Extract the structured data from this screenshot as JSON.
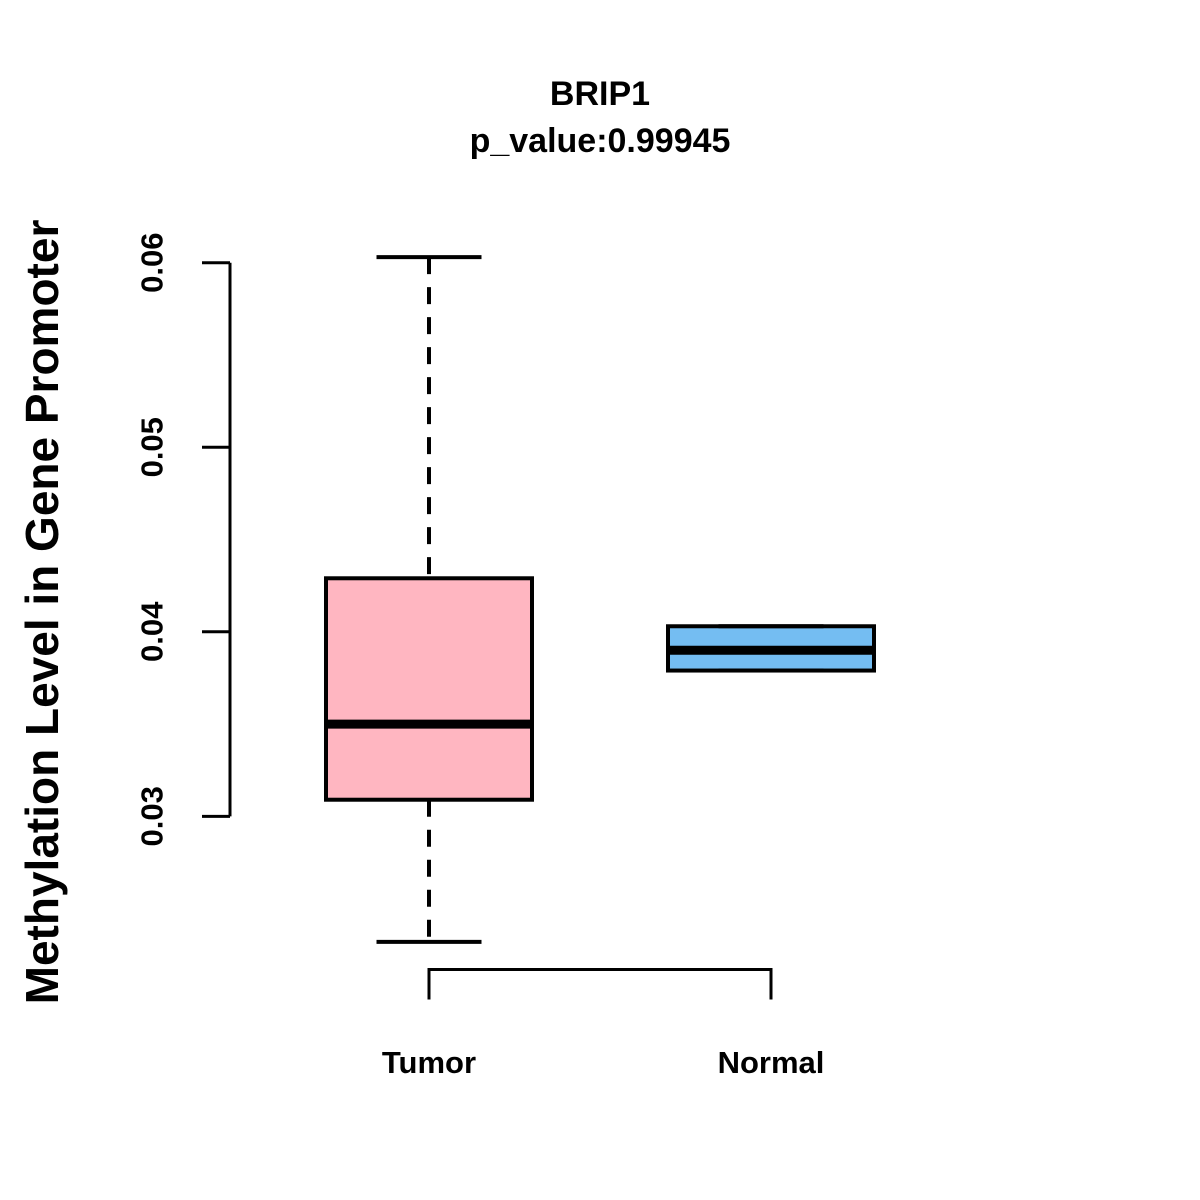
{
  "chart_data": {
    "type": "boxplot",
    "title": "BRIP1",
    "subtitle": "p_value:0.99945",
    "ylabel": "Methylation Level in Gene Promoter",
    "xlabel": "",
    "categories": [
      "Tumor",
      "Normal"
    ],
    "y_ticks": [
      {
        "label": "0.03",
        "value": 0.03
      },
      {
        "label": "0.04",
        "value": 0.04
      },
      {
        "label": "0.05",
        "value": 0.05
      },
      {
        "label": "0.06",
        "value": 0.06
      }
    ],
    "ylim": [
      0.0217,
      0.0618
    ],
    "grid": "off",
    "legend": "none",
    "stroke_color": "#000000",
    "background_color": "#FFFFFF",
    "groups": [
      {
        "name": "Tumor",
        "color": "#FFB6C1",
        "lower_whisker": 0.0232,
        "q1": 0.0309,
        "median": 0.035,
        "q3": 0.0429,
        "upper_whisker": 0.0603,
        "whisker_line_style": "dashed",
        "outliers": []
      },
      {
        "name": "Normal",
        "color": "#74BDF2",
        "lower_whisker": 0.0379,
        "q1": 0.0379,
        "median": 0.039,
        "q3": 0.0403,
        "upper_whisker": 0.0403,
        "whisker_line_style": "dashed",
        "outliers": []
      }
    ]
  }
}
